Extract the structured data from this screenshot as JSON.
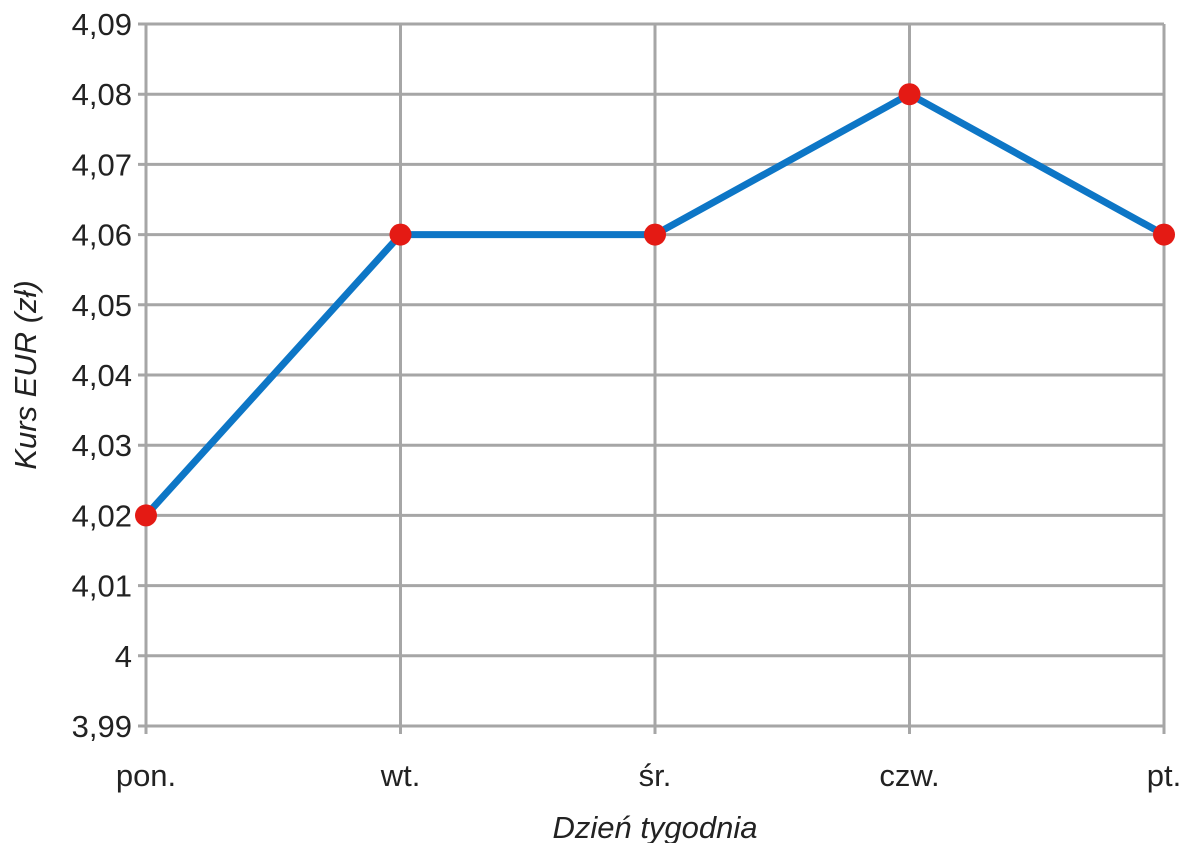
{
  "chart_data": {
    "type": "line",
    "title": "",
    "xlabel": "Dzień tygodnia",
    "ylabel": "Kurs EUR (zł)",
    "categories": [
      "pon.",
      "wt.",
      "śr.",
      "czw.",
      "pt."
    ],
    "series": [
      {
        "values": [
          4.02,
          4.06,
          4.06,
          4.08,
          4.06
        ],
        "line_color": "#0d76c6",
        "marker_color": "#e41a14"
      }
    ],
    "ylim": [
      3.99,
      4.09
    ],
    "yticks": [
      3.99,
      4,
      4.01,
      4.02,
      4.03,
      4.04,
      4.05,
      4.06,
      4.07,
      4.08,
      4.09
    ],
    "ytick_labels": [
      "3,99",
      "4",
      "4,01",
      "4,02",
      "4,03",
      "4,04",
      "4,05",
      "4,06",
      "4,07",
      "4,08",
      "4,09"
    ],
    "grid": true,
    "grid_color": "#a6a6a6",
    "legend": "none"
  }
}
